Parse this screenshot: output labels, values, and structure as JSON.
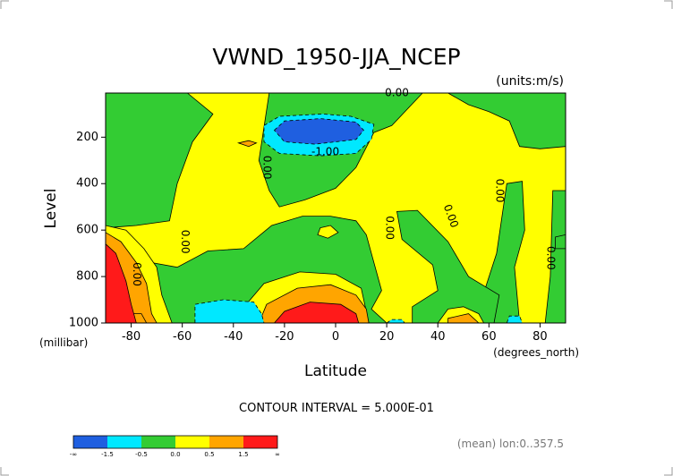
{
  "chart_data": {
    "type": "heatmap",
    "title": "VWND_1950-JJA_NCEP",
    "units_label": "(units:m/s)",
    "ylabel": "Level",
    "yunits": "(millibar)",
    "xlabel": "Latitude",
    "xunits": "(degrees_north)",
    "xlim": [
      -90,
      90
    ],
    "ylim": [
      1000,
      10
    ],
    "x_ticks": [
      -80,
      -60,
      -40,
      -20,
      0,
      20,
      40,
      60,
      80
    ],
    "x_tick_labels": [
      "-80",
      "-60",
      "-40",
      "-20",
      "0",
      "20",
      "40",
      "60",
      "80"
    ],
    "y_ticks": [
      1000,
      800,
      600,
      400,
      200
    ],
    "y_tick_labels": [
      "1000",
      "800",
      "600",
      "400",
      "200"
    ],
    "contour_interval_text": "CONTOUR INTERVAL = 5.000E-01",
    "footer_note": "(mean) lon:0..357.5",
    "colorbar": {
      "colors": [
        "#1f5fe0",
        "#00e8ff",
        "#33cc33",
        "#ffff00",
        "#ffa500",
        "#ff1a1a"
      ],
      "labels": [
        "-∞",
        "-1.5",
        "-0.5",
        "0.0",
        "0.5",
        "1.5",
        "∞"
      ]
    },
    "background_color": "#ffff00",
    "regions": [
      {
        "level": "green",
        "color": "#33cc33",
        "points": [
          [
            -90,
            10
          ],
          [
            -58,
            10
          ],
          [
            -48,
            100
          ],
          [
            -56,
            220
          ],
          [
            -62,
            400
          ],
          [
            -65,
            560
          ],
          [
            -78,
            580
          ],
          [
            -90,
            590
          ]
        ]
      },
      {
        "level": "green",
        "color": "#33cc33",
        "points": [
          [
            -26,
            10
          ],
          [
            34,
            10
          ],
          [
            22,
            150
          ],
          [
            15,
            180
          ],
          [
            8,
            330
          ],
          [
            0,
            420
          ],
          [
            -12,
            470
          ],
          [
            -22,
            500
          ],
          [
            -26,
            430
          ],
          [
            -30,
            300
          ]
        ]
      },
      {
        "level": "green",
        "color": "#33cc33",
        "points": [
          [
            44,
            10
          ],
          [
            90,
            10
          ],
          [
            90,
            240
          ],
          [
            80,
            250
          ],
          [
            72,
            240
          ],
          [
            68,
            130
          ],
          [
            60,
            90
          ],
          [
            52,
            60
          ]
        ]
      },
      {
        "level": "green",
        "color": "#33cc33",
        "points": [
          [
            67,
            400
          ],
          [
            73,
            390
          ],
          [
            74,
            600
          ],
          [
            70,
            760
          ],
          [
            72,
            1000
          ],
          [
            60,
            1000
          ],
          [
            58,
            870
          ],
          [
            63,
            700
          ]
        ]
      },
      {
        "level": "green",
        "color": "#33cc33",
        "points": [
          [
            85,
            430
          ],
          [
            90,
            430
          ],
          [
            90,
            1000
          ],
          [
            82,
            1000
          ],
          [
            84,
            800
          ]
        ]
      },
      {
        "level": "green",
        "color": "#33cc33",
        "points": [
          [
            -90,
            1000
          ],
          [
            -90,
            640
          ],
          [
            -83,
            680
          ],
          [
            -72,
            740
          ],
          [
            -62,
            760
          ],
          [
            -50,
            690
          ],
          [
            -36,
            680
          ],
          [
            -25,
            580
          ],
          [
            -13,
            540
          ],
          [
            -2,
            540
          ],
          [
            8,
            560
          ],
          [
            12,
            620
          ],
          [
            15,
            740
          ],
          [
            18,
            860
          ],
          [
            14,
            940
          ],
          [
            20,
            1000
          ],
          [
            30,
            1000
          ],
          [
            30,
            930
          ],
          [
            40,
            860
          ],
          [
            38,
            750
          ],
          [
            26,
            640
          ],
          [
            24,
            520
          ],
          [
            32,
            515
          ],
          [
            44,
            650
          ],
          [
            52,
            800
          ],
          [
            64,
            880
          ],
          [
            62,
            1000
          ]
        ]
      },
      {
        "level": "green",
        "color": "#33cc33",
        "points": [
          [
            86,
            630
          ],
          [
            90,
            620
          ],
          [
            90,
            680
          ],
          [
            86,
            680
          ]
        ]
      },
      {
        "level": "yellow",
        "color": "#ffff00",
        "points": [
          [
            -90,
            580
          ],
          [
            -82,
            600
          ],
          [
            -75,
            680
          ],
          [
            -70,
            760
          ],
          [
            -68,
            880
          ],
          [
            -64,
            1000
          ],
          [
            -90,
            1000
          ]
        ]
      },
      {
        "level": "yellow",
        "color": "#ffff00",
        "points": [
          [
            -38,
            1000
          ],
          [
            -35,
            920
          ],
          [
            -28,
            830
          ],
          [
            -14,
            780
          ],
          [
            0,
            790
          ],
          [
            10,
            850
          ],
          [
            13,
            1000
          ]
        ]
      },
      {
        "level": "yellow",
        "color": "#ffff00",
        "points": [
          [
            -6,
            590
          ],
          [
            -2,
            580
          ],
          [
            1,
            610
          ],
          [
            -3,
            635
          ],
          [
            -7,
            620
          ]
        ]
      },
      {
        "level": "yellow",
        "color": "#ffff00",
        "points": [
          [
            44,
            940
          ],
          [
            50,
            930
          ],
          [
            56,
            960
          ],
          [
            58,
            1000
          ],
          [
            40,
            1000
          ]
        ]
      },
      {
        "level": "orange",
        "color": "#ffa500",
        "points": [
          [
            -90,
            610
          ],
          [
            -84,
            650
          ],
          [
            -78,
            740
          ],
          [
            -74,
            830
          ],
          [
            -72,
            960
          ],
          [
            -70,
            1000
          ],
          [
            -90,
            1000
          ]
        ]
      },
      {
        "level": "orange",
        "color": "#ffa500",
        "points": [
          [
            -30,
            1000
          ],
          [
            -27,
            920
          ],
          [
            -15,
            850
          ],
          [
            -2,
            835
          ],
          [
            8,
            880
          ],
          [
            12,
            940
          ],
          [
            13,
            1000
          ]
        ]
      },
      {
        "level": "orange",
        "color": "#ffa500",
        "points": [
          [
            -38,
            225
          ],
          [
            -34,
            215
          ],
          [
            -31,
            225
          ],
          [
            -34,
            240
          ]
        ]
      },
      {
        "level": "orange",
        "color": "#ffa500",
        "points": [
          [
            44,
            980
          ],
          [
            52,
            960
          ],
          [
            56,
            1000
          ],
          [
            44,
            1000
          ]
        ]
      },
      {
        "level": "orange",
        "color": "#ffa500",
        "points": [
          [
            -82,
            1000
          ],
          [
            -80,
            960
          ],
          [
            -76,
            960
          ],
          [
            -74,
            1000
          ]
        ]
      },
      {
        "level": "red",
        "color": "#ff1a1a",
        "points": [
          [
            -90,
            660
          ],
          [
            -86,
            700
          ],
          [
            -82,
            820
          ],
          [
            -80,
            920
          ],
          [
            -78,
            1000
          ],
          [
            -90,
            1000
          ]
        ]
      },
      {
        "level": "red",
        "color": "#ff1a1a",
        "points": [
          [
            -24,
            1000
          ],
          [
            -20,
            950
          ],
          [
            -10,
            910
          ],
          [
            2,
            920
          ],
          [
            8,
            960
          ],
          [
            9,
            1000
          ]
        ]
      },
      {
        "level": "cyan",
        "color": "#00e8ff",
        "points": [
          [
            -28,
            150
          ],
          [
            -22,
            110
          ],
          [
            -5,
            100
          ],
          [
            6,
            110
          ],
          [
            15,
            145
          ],
          [
            14,
            210
          ],
          [
            8,
            270
          ],
          [
            -6,
            280
          ],
          [
            -22,
            270
          ],
          [
            -28,
            220
          ]
        ]
      },
      {
        "level": "cyan",
        "color": "#00e8ff",
        "points": [
          [
            -55,
            1000
          ],
          [
            -55,
            920
          ],
          [
            -44,
            900
          ],
          [
            -32,
            910
          ],
          [
            -29,
            960
          ],
          [
            -28,
            1000
          ]
        ]
      },
      {
        "level": "cyan",
        "color": "#00e8ff",
        "points": [
          [
            67,
            1000
          ],
          [
            68,
            970
          ],
          [
            72,
            970
          ],
          [
            73,
            1000
          ]
        ]
      },
      {
        "level": "cyan",
        "color": "#00e8ff",
        "points": [
          [
            20,
            1000
          ],
          [
            22,
            985
          ],
          [
            26,
            985
          ],
          [
            27,
            1000
          ]
        ]
      },
      {
        "level": "blue",
        "color": "#1f5fe0",
        "points": [
          [
            -24,
            170
          ],
          [
            -20,
            130
          ],
          [
            -6,
            120
          ],
          [
            8,
            135
          ],
          [
            11,
            170
          ],
          [
            8,
            210
          ],
          [
            -8,
            230
          ],
          [
            -20,
            220
          ]
        ]
      }
    ],
    "contour_labels": [
      {
        "text": "0.00",
        "lat": 24,
        "lev": 10,
        "rotation": 0
      },
      {
        "text": "-1.00",
        "lat": -4,
        "lev": 265,
        "rotation": 0
      },
      {
        "text": "0.00",
        "lat": -27,
        "lev": 330,
        "rotation": 90
      },
      {
        "text": "0.00",
        "lat": -59,
        "lev": 650,
        "rotation": 90
      },
      {
        "text": "0.00",
        "lat": -78,
        "lev": 790,
        "rotation": 90
      },
      {
        "text": "0.00",
        "lat": 21,
        "lev": 590,
        "rotation": 90
      },
      {
        "text": "0.00",
        "lat": 45,
        "lev": 540,
        "rotation": 70
      },
      {
        "text": "0.00",
        "lat": 64,
        "lev": 430,
        "rotation": 90
      },
      {
        "text": "0.00",
        "lat": 84,
        "lev": 720,
        "rotation": 90
      }
    ]
  }
}
